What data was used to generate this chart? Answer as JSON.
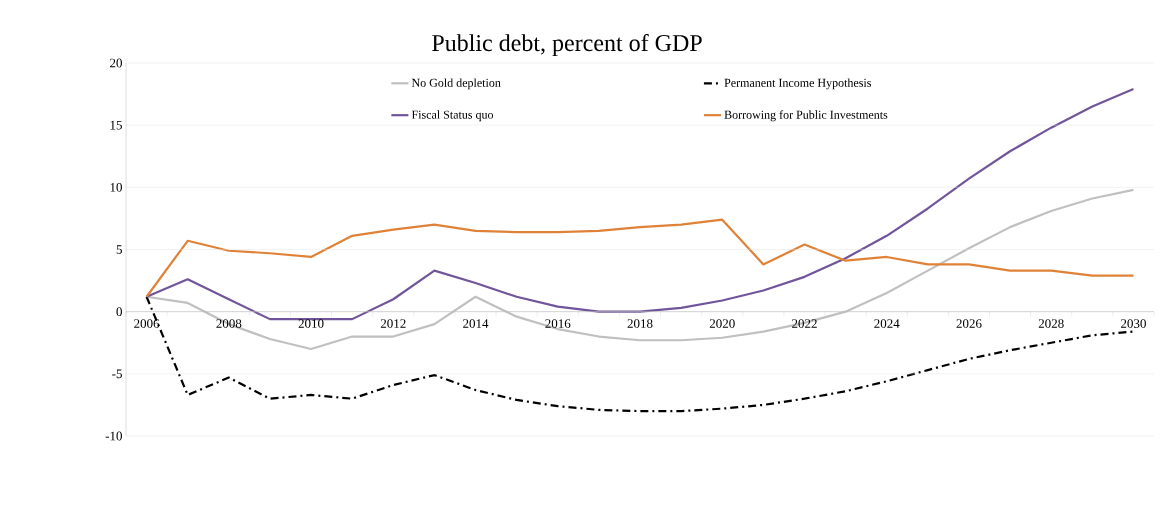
{
  "chart_data": {
    "type": "line",
    "title": "Public debt, percent of GDP",
    "categories": [
      "2006",
      null,
      "2008",
      null,
      "2010",
      null,
      "2012",
      null,
      "2014",
      null,
      "2016",
      null,
      "2018",
      null,
      "2020",
      null,
      "2022",
      null,
      "2024",
      null,
      "2026",
      null,
      "2028",
      null,
      "2030"
    ],
    "series": [
      {
        "name": "No Gold depletion",
        "color": "#c0c0c0",
        "line_style": "solid",
        "values": [
          1.2,
          0.7,
          -1.0,
          -2.2,
          -3.0,
          -2.0,
          -2.0,
          -1.0,
          1.2,
          -0.4,
          -1.4,
          -2.0,
          -2.3,
          -2.3,
          -2.1,
          -1.6,
          -0.9,
          0.0,
          1.5,
          3.3,
          5.1,
          6.8,
          8.1,
          9.1,
          9.8
        ]
      },
      {
        "name": "Permanent Income Hypothesis",
        "color": "#000000",
        "line_style": "dashdot",
        "values": [
          1.2,
          -6.7,
          -5.3,
          -7.0,
          -6.7,
          -7.0,
          -5.9,
          -5.1,
          -6.3,
          -7.1,
          -7.6,
          -7.9,
          -8.0,
          -8.0,
          -7.8,
          -7.5,
          -7.0,
          -6.4,
          -5.6,
          -4.7,
          -3.8,
          -3.1,
          -2.5,
          -1.9,
          -1.6
        ]
      },
      {
        "name": "Fiscal Status quo",
        "color": "#71559b",
        "line_style": "solid",
        "values": [
          1.2,
          2.6,
          1.0,
          -0.6,
          -0.6,
          -0.6,
          1.0,
          3.3,
          2.3,
          1.2,
          0.4,
          0.0,
          0.0,
          0.3,
          0.9,
          1.7,
          2.8,
          4.3,
          6.1,
          8.3,
          10.7,
          12.9,
          14.8,
          16.5,
          17.9
        ]
      },
      {
        "name": "Borrowing for Public Investments",
        "color": "#df8238",
        "line_style": "solid",
        "values": [
          1.2,
          5.7,
          4.9,
          4.7,
          4.4,
          6.1,
          6.6,
          7.0,
          6.5,
          6.4,
          6.4,
          6.5,
          6.8,
          7.0,
          7.4,
          3.8,
          5.4,
          4.1,
          4.4,
          3.8,
          3.8,
          3.3,
          3.3,
          2.9,
          2.9
        ]
      }
    ],
    "ylim": [
      -10,
      20
    ],
    "yticks": [
      -10,
      -5,
      0,
      5,
      10,
      15,
      20
    ],
    "grid": "y",
    "legend": "top",
    "marker": "none"
  }
}
